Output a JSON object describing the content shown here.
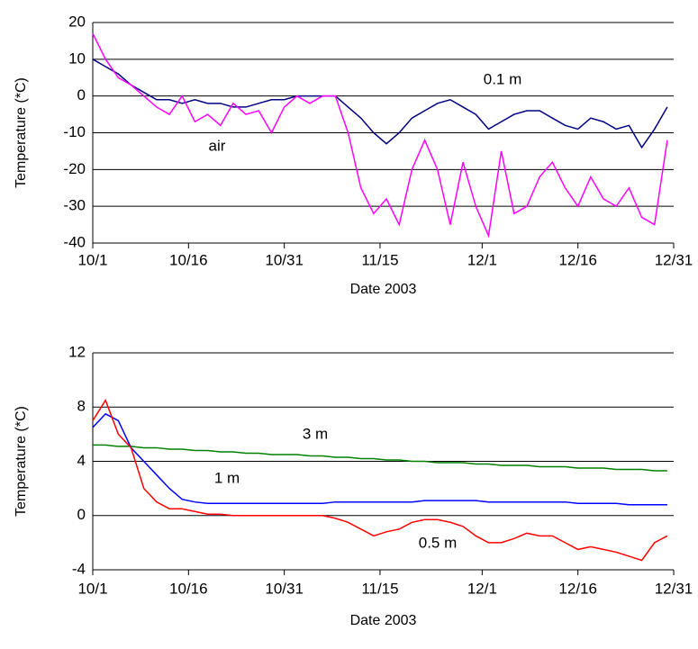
{
  "chart_data": [
    {
      "type": "line",
      "ylabel": "Temperature (*C)",
      "xlabel": "Date 2003",
      "x": [
        0,
        2,
        4,
        6,
        8,
        10,
        12,
        14,
        16,
        18,
        20,
        22,
        24,
        26,
        28,
        30,
        32,
        34,
        36,
        38,
        40,
        42,
        44,
        46,
        48,
        50,
        52,
        54,
        56,
        58,
        60,
        62,
        64,
        66,
        68,
        70,
        72,
        74,
        76,
        78,
        80,
        82,
        84,
        86,
        88,
        90
      ],
      "xlim": [
        0,
        91
      ],
      "xticks": [
        {
          "value": 0,
          "label": "10/1"
        },
        {
          "value": 15,
          "label": "10/16"
        },
        {
          "value": 30,
          "label": "10/31"
        },
        {
          "value": 45,
          "label": "11/15"
        },
        {
          "value": 61,
          "label": "12/1"
        },
        {
          "value": 76,
          "label": "12/16"
        },
        {
          "value": 91,
          "label": "12/31"
        }
      ],
      "ylim": [
        -40,
        20
      ],
      "yticks": [
        -40,
        -30,
        -20,
        -10,
        0,
        10,
        20
      ],
      "grid": true,
      "series": [
        {
          "name": "0.1 m",
          "color": "#000080",
          "values": [
            10,
            8,
            6,
            3,
            1,
            -1,
            -1,
            -2,
            -1,
            -2,
            -2,
            -3,
            -3,
            -2,
            -1,
            -1,
            0,
            0,
            0,
            0,
            -3,
            -6,
            -10,
            -13,
            -10,
            -6,
            -4,
            -2,
            -1,
            -3,
            -5,
            -9,
            -7,
            -5,
            -4,
            -4,
            -6,
            -8,
            -9,
            -6,
            -7,
            -9,
            -8,
            -14,
            -9,
            -3
          ]
        },
        {
          "name": "air",
          "color": "#ff00ff",
          "values": [
            17,
            10,
            5,
            3,
            0,
            -3,
            -5,
            0,
            -7,
            -5,
            -8,
            -2,
            -5,
            -4,
            -10,
            -3,
            0,
            -2,
            0,
            0,
            -10,
            -25,
            -32,
            -28,
            -35,
            -20,
            -12,
            -20,
            -35,
            -18,
            -30,
            -38,
            -15,
            -32,
            -30,
            -22,
            -18,
            -25,
            -30,
            -22,
            -28,
            -30,
            -25,
            -33,
            -35,
            -12
          ]
        }
      ]
    },
    {
      "type": "line",
      "ylabel": "Temperature (*C)",
      "xlabel": "Date 2003",
      "x": [
        0,
        2,
        4,
        6,
        8,
        10,
        12,
        14,
        16,
        18,
        20,
        22,
        24,
        26,
        28,
        30,
        32,
        34,
        36,
        38,
        40,
        42,
        44,
        46,
        48,
        50,
        52,
        54,
        56,
        58,
        60,
        62,
        64,
        66,
        68,
        70,
        72,
        74,
        76,
        78,
        80,
        82,
        84,
        86,
        88,
        90
      ],
      "xlim": [
        0,
        91
      ],
      "xticks": [
        {
          "value": 0,
          "label": "10/1"
        },
        {
          "value": 15,
          "label": "10/16"
        },
        {
          "value": 30,
          "label": "10/31"
        },
        {
          "value": 45,
          "label": "11/15"
        },
        {
          "value": 61,
          "label": "12/1"
        },
        {
          "value": 76,
          "label": "12/16"
        },
        {
          "value": 91,
          "label": "12/31"
        }
      ],
      "ylim": [
        -4,
        12
      ],
      "yticks": [
        -4,
        0,
        4,
        8,
        12
      ],
      "grid": true,
      "series": [
        {
          "name": "3 m",
          "color": "#008000",
          "values": [
            5.2,
            5.2,
            5.1,
            5.1,
            5,
            5,
            4.9,
            4.9,
            4.8,
            4.8,
            4.7,
            4.7,
            4.6,
            4.6,
            4.5,
            4.5,
            4.5,
            4.4,
            4.4,
            4.3,
            4.3,
            4.2,
            4.2,
            4.1,
            4.1,
            4,
            4,
            3.9,
            3.9,
            3.9,
            3.8,
            3.8,
            3.7,
            3.7,
            3.7,
            3.6,
            3.6,
            3.6,
            3.5,
            3.5,
            3.5,
            3.4,
            3.4,
            3.4,
            3.3,
            3.3
          ]
        },
        {
          "name": "1 m",
          "color": "#0000ff",
          "values": [
            6.5,
            7.5,
            7,
            5,
            4,
            3,
            2,
            1.2,
            1,
            0.9,
            0.9,
            0.9,
            0.9,
            0.9,
            0.9,
            0.9,
            0.9,
            0.9,
            0.9,
            1,
            1,
            1,
            1,
            1,
            1,
            1,
            1.1,
            1.1,
            1.1,
            1.1,
            1.1,
            1,
            1,
            1,
            1,
            1,
            1,
            1,
            0.9,
            0.9,
            0.9,
            0.9,
            0.8,
            0.8,
            0.8,
            0.8
          ]
        },
        {
          "name": "0.5 m",
          "color": "#ff0000",
          "values": [
            7,
            8.5,
            6,
            5,
            2,
            1,
            0.5,
            0.5,
            0.3,
            0.1,
            0.1,
            0,
            0,
            0,
            0,
            0,
            0,
            0,
            0,
            -0.2,
            -0.5,
            -1,
            -1.5,
            -1.2,
            -1,
            -0.5,
            -0.3,
            -0.3,
            -0.5,
            -0.8,
            -1.5,
            -2,
            -2,
            -1.7,
            -1.3,
            -1.5,
            -1.5,
            -2,
            -2.5,
            -2.3,
            -2.5,
            -2.7,
            -3,
            -3.3,
            -2,
            -1.5
          ]
        }
      ]
    }
  ]
}
